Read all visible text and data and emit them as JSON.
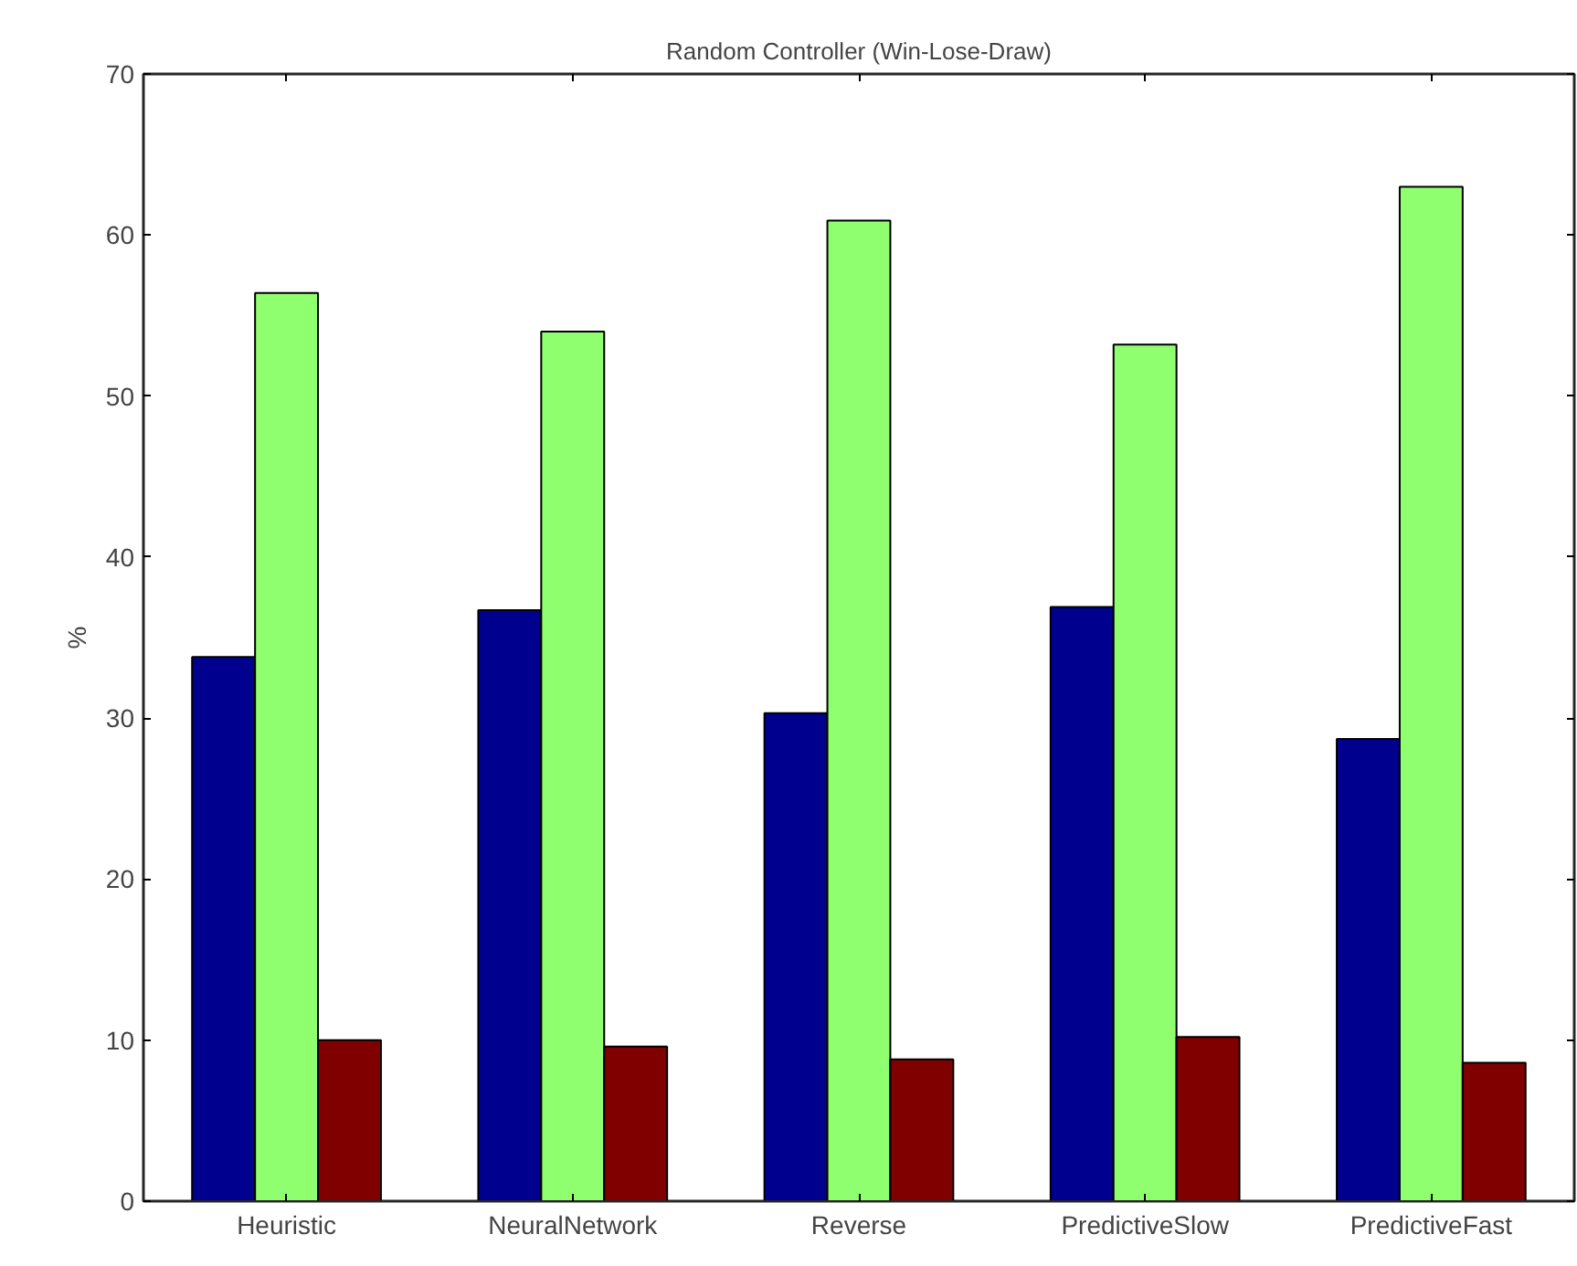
{
  "chart_data": {
    "type": "bar",
    "title": "Random Controller (Win-Lose-Draw)",
    "ylabel": "%",
    "categories": [
      "Heuristic",
      "NeuralNetwork",
      "Reverse",
      "PredictiveSlow",
      "PredictiveFast"
    ],
    "series": [
      {
        "color": "#00008f",
        "values": [
          33.8,
          36.7,
          30.3,
          36.9,
          28.7
        ]
      },
      {
        "color": "#8fff6f",
        "values": [
          56.4,
          54.0,
          60.9,
          53.2,
          63.0
        ]
      },
      {
        "color": "#800000",
        "values": [
          10.0,
          9.6,
          8.8,
          10.2,
          8.6
        ]
      }
    ],
    "ylim": [
      0,
      70
    ],
    "yticks": [
      0,
      10,
      20,
      30,
      40,
      50,
      60,
      70
    ],
    "grid": false
  }
}
